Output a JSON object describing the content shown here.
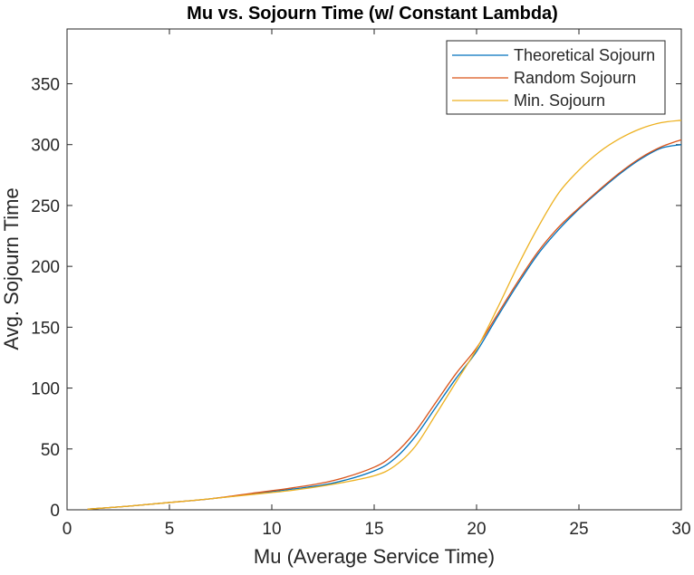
{
  "chart_data": {
    "type": "line",
    "title": "Mu vs. Sojourn Time (w/ Constant Lambda)",
    "xlabel": "Mu (Average Service Time)",
    "ylabel": "Avg. Sojourn Time",
    "xlim": [
      0,
      30
    ],
    "ylim": [
      0,
      395
    ],
    "xticks": [
      0,
      5,
      10,
      15,
      20,
      25,
      30
    ],
    "yticks": [
      0,
      50,
      100,
      150,
      200,
      250,
      300,
      350
    ],
    "grid": false,
    "legend_position": "top-right",
    "series": [
      {
        "name": "Theoretical Sojourn",
        "color": "#0072BD",
        "x": [
          1,
          3,
          5,
          7,
          9,
          11,
          13,
          15,
          16,
          17,
          18,
          19,
          20,
          21,
          22,
          23,
          24,
          25,
          26,
          27,
          28,
          29,
          30
        ],
        "y": [
          0.5,
          3,
          6,
          9,
          13,
          17,
          22,
          32,
          42,
          60,
          84,
          108,
          130,
          158,
          185,
          210,
          230,
          247,
          262,
          276,
          288,
          297,
          300
        ]
      },
      {
        "name": "Random Sojourn",
        "color": "#D95319",
        "x": [
          1,
          3,
          5,
          7,
          9,
          11,
          13,
          15,
          16,
          17,
          18,
          19,
          20,
          21,
          22,
          23,
          24,
          25,
          26,
          27,
          28,
          29,
          30
        ],
        "y": [
          0.5,
          3,
          6,
          9,
          13.5,
          18,
          24,
          35,
          46,
          64,
          88,
          112,
          133,
          160,
          187,
          212,
          232,
          248,
          263,
          277,
          289,
          298,
          304
        ]
      },
      {
        "name": "Min. Sojourn",
        "color": "#EDB120",
        "x": [
          1,
          3,
          5,
          7,
          9,
          11,
          13,
          15,
          16,
          17,
          18,
          19,
          20,
          21,
          22,
          23,
          24,
          25,
          26,
          27,
          28,
          29,
          30
        ],
        "y": [
          0.5,
          3,
          6,
          9,
          12.5,
          16,
          21,
          28,
          36,
          52,
          78,
          105,
          132,
          165,
          200,
          232,
          260,
          279,
          294,
          305,
          313,
          318,
          320
        ]
      }
    ]
  }
}
